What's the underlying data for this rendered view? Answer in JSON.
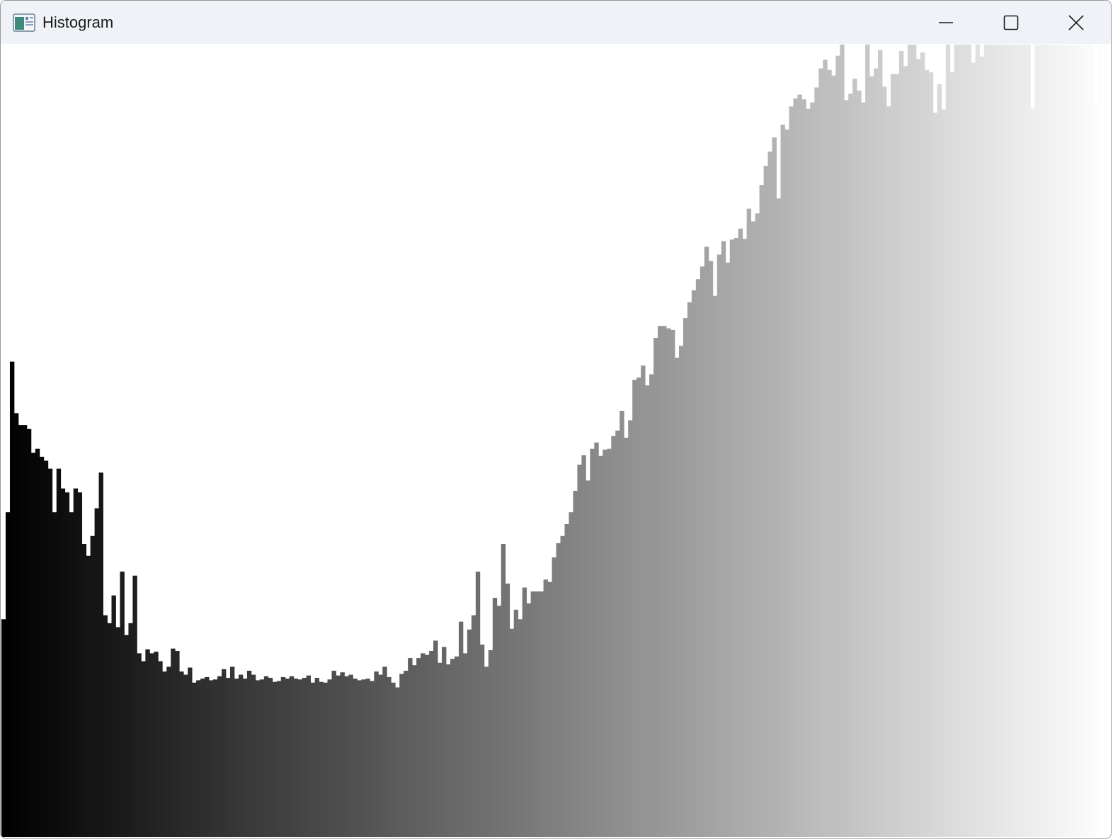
{
  "window": {
    "title": "Histogram",
    "icon": "histogram-app-icon",
    "controls": {
      "minimize_icon": "minimize-icon",
      "maximize_icon": "maximize-icon",
      "close_icon": "close-icon"
    }
  },
  "chart_data": {
    "type": "bar",
    "title": "",
    "xlabel": "",
    "ylabel": "",
    "bar_color": "grayscale of bin intensity (black to white)",
    "grid": false,
    "legend": "none",
    "xlim": [
      0,
      255
    ],
    "ylim": [
      0,
      1000
    ],
    "values": [
      275,
      410,
      600,
      535,
      520,
      520,
      515,
      485,
      490,
      480,
      475,
      465,
      410,
      465,
      440,
      435,
      410,
      440,
      435,
      370,
      355,
      380,
      415,
      460,
      280,
      270,
      305,
      265,
      335,
      255,
      270,
      330,
      232,
      222,
      237,
      232,
      234,
      222,
      209,
      215,
      238,
      235,
      209,
      205,
      214,
      195,
      198,
      200,
      202,
      198,
      199,
      203,
      212,
      201,
      215,
      200,
      205,
      200,
      210,
      205,
      198,
      199,
      203,
      201,
      196,
      197,
      202,
      200,
      203,
      200,
      199,
      201,
      204,
      195,
      201,
      196,
      195,
      199,
      210,
      204,
      208,
      203,
      205,
      200,
      198,
      199,
      200,
      197,
      209,
      205,
      215,
      202,
      195,
      189,
      206,
      210,
      226,
      217,
      226,
      232,
      230,
      235,
      248,
      220,
      240,
      218,
      225,
      228,
      272,
      232,
      262,
      280,
      335,
      243,
      215,
      236,
      302,
      292,
      370,
      320,
      263,
      287,
      275,
      315,
      295,
      310,
      310,
      310,
      325,
      322,
      353,
      371,
      380,
      395,
      410,
      437,
      470,
      482,
      450,
      490,
      498,
      481,
      489,
      490,
      506,
      513,
      538,
      504,
      526,
      577,
      580,
      595,
      570,
      584,
      630,
      645,
      645,
      642,
      640,
      605,
      620,
      655,
      675,
      690,
      704,
      720,
      745,
      727,
      683,
      735,
      752,
      725,
      754,
      756,
      768,
      755,
      793,
      777,
      787,
      823,
      847,
      865,
      883,
      806,
      899,
      893,
      922,
      932,
      937,
      931,
      919,
      927,
      946,
      970,
      981,
      968,
      961,
      986,
      1000,
      930,
      938,
      957,
      942,
      927,
      1000,
      960,
      970,
      993,
      947,
      922,
      963,
      963,
      992,
      973,
      1000,
      1000,
      982,
      990,
      968,
      965,
      914,
      950,
      918,
      1000,
      965,
      1000,
      1000,
      1000,
      1000,
      977,
      1000,
      985,
      1000,
      1000,
      1000,
      1000,
      1000,
      1000,
      1000,
      1000,
      1000,
      1000,
      1000,
      920,
      1000,
      1000,
      1000,
      1000,
      1000,
      1000,
      1000,
      1000,
      1000,
      1000,
      1000,
      1000,
      1000,
      1000,
      925,
      1000,
      1000,
      1000
    ]
  }
}
